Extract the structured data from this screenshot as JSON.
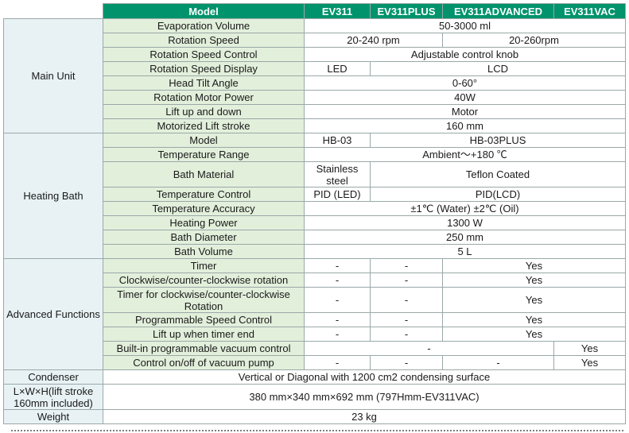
{
  "header": {
    "model": "Model",
    "ev311": "EV311",
    "ev311plus": "EV311PLUS",
    "ev311advanced": "EV311ADVANCED",
    "ev311vac": "EV311VAC"
  },
  "main_unit": {
    "section": "Main Unit",
    "evaporation_volume": {
      "label": "Evaporation Volume",
      "value": "50-3000 ml"
    },
    "rotation_speed": {
      "label": "Rotation Speed",
      "v1": "20-240 rpm",
      "v2": "20-260rpm"
    },
    "rotation_speed_control": {
      "label": "Rotation Speed Control",
      "value": "Adjustable control knob"
    },
    "rotation_speed_display": {
      "label": "Rotation Speed Display",
      "v1": "LED",
      "v2": "LCD"
    },
    "head_tilt": {
      "label": "Head Tilt Angle",
      "value": "0-60°"
    },
    "motor_power": {
      "label": "Rotation Motor Power",
      "value": "40W"
    },
    "lift": {
      "label": "Lift up and down",
      "value": "Motor"
    },
    "lift_stroke": {
      "label": "Motorized Lift stroke",
      "value": "160 mm"
    }
  },
  "heating_bath": {
    "section": "Heating Bath",
    "model": {
      "label": "Model",
      "v1": "HB-03",
      "v2": "HB-03PLUS"
    },
    "temp_range": {
      "label": "Temperature Range",
      "value": "Ambient～+180 ℃"
    },
    "bath_material": {
      "label": "Bath Material",
      "v1": "Stainless steel",
      "v2": "Teflon Coated"
    },
    "temp_control": {
      "label": "Temperature Control",
      "v1": "PID (LED)",
      "v2": "PID(LCD)"
    },
    "temp_accuracy": {
      "label": "Temperature Accuracy",
      "value": "±1℃ (Water) ±2℃ (Oil)"
    },
    "heating_power": {
      "label": "Heating Power",
      "value": "1300 W"
    },
    "bath_diameter": {
      "label": "Bath Diameter",
      "value": "250 mm"
    },
    "bath_volume": {
      "label": "Bath Volume",
      "value": "5 L"
    }
  },
  "advanced": {
    "section": "Advanced Functions",
    "dash": "-",
    "yes": "Yes",
    "timer": "Timer",
    "cw_ccw": "Clockwise/counter-clockwise rotation",
    "timer_cw_ccw": "Timer for clockwise/counter-clockwise Rotation",
    "prog_speed": "Programmable Speed Control",
    "lift_timer": "Lift up when timer end",
    "vac_control": "Built-in programmable vacuum control",
    "vac_pump": "Control on/off of vacuum pump"
  },
  "condenser": {
    "label": "Condenser",
    "value": "Vertical or Diagonal with 1200 cm2 condensing surface"
  },
  "dimensions": {
    "label": "L×W×H(lift stroke 160mm included)",
    "value": "380 mm×340 mm×692 mm (797Hmm-EV311VAC)"
  },
  "weight": {
    "label": "Weight",
    "value": "23 kg"
  },
  "colors": {
    "header_bg": "#00936c",
    "label_bg": "#e2efdb",
    "section_bg": "#e8f2f4"
  }
}
